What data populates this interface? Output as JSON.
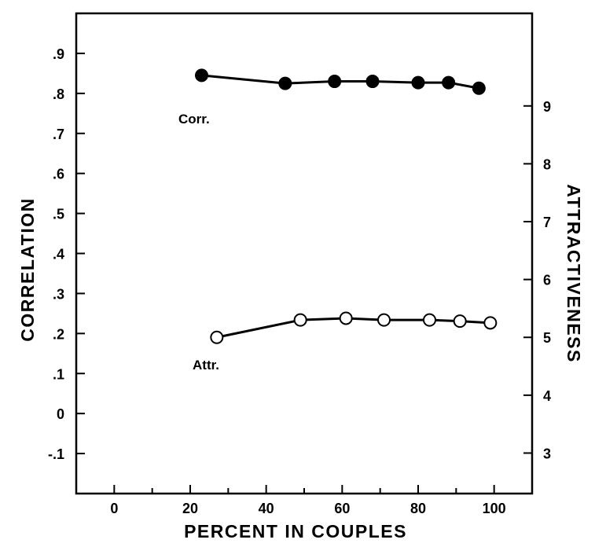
{
  "chart_data": {
    "type": "line",
    "x_axis": {
      "label": "PERCENT IN COUPLES",
      "range": [
        -10,
        110
      ],
      "ticks": [
        0,
        20,
        40,
        60,
        80,
        100
      ],
      "tick_labels": [
        "0",
        "20",
        "40",
        "60",
        "80",
        "100"
      ]
    },
    "y_axis_left": {
      "label": "CORRELATION",
      "range": [
        -0.2,
        1.0
      ],
      "ticks": [
        -0.1,
        0,
        0.1,
        0.2,
        0.3,
        0.4,
        0.5,
        0.6,
        0.7,
        0.8,
        0.9
      ],
      "tick_labels": [
        "-.1",
        "0",
        ".1",
        ".2",
        ".3",
        ".4",
        ".5",
        ".6",
        ".7",
        ".8",
        ".9"
      ]
    },
    "y_axis_right": {
      "label": "ATTRACTIVENESS",
      "range": [
        2.3,
        10.6
      ],
      "ticks": [
        3,
        4,
        5,
        6,
        7,
        8,
        9
      ],
      "tick_labels": [
        "3",
        "4",
        "5",
        "6",
        "7",
        "8",
        "9"
      ]
    },
    "series": [
      {
        "name": "Corr.",
        "axis": "left",
        "marker": "filled-circle",
        "color": "#000000",
        "x": [
          23,
          45,
          58,
          68,
          80,
          88,
          96
        ],
        "y": [
          0.845,
          0.825,
          0.83,
          0.83,
          0.827,
          0.827,
          0.813
        ]
      },
      {
        "name": "Attr.",
        "axis": "right",
        "marker": "open-circle",
        "color": "#000000",
        "x": [
          27,
          49,
          61,
          71,
          83,
          91,
          99
        ],
        "y": [
          5.0,
          5.3,
          5.33,
          5.3,
          5.3,
          5.28,
          5.25
        ]
      }
    ],
    "grid": false,
    "legend": "inline labels"
  }
}
